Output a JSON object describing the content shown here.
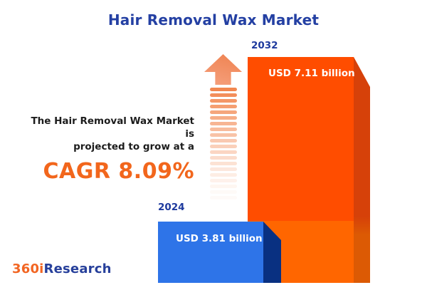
{
  "title": "Hair Removal Wax Market",
  "description": {
    "line1": "The Hair Removal Wax Market is",
    "line2": "projected to grow at a",
    "cagr": "CAGR 8.09%"
  },
  "chart_data": {
    "type": "bar",
    "title": "Hair Removal Wax Market",
    "categories": [
      "2024",
      "2032"
    ],
    "values": [
      3.81,
      7.11
    ],
    "unit": "USD billion",
    "bar_labels": [
      "USD 3.81 billion",
      "USD 7.11 billion"
    ],
    "cagr_percent": 8.09,
    "annotation": "The Hair Removal Wax Market is projected to grow at a CAGR 8.09%",
    "legend": "none",
    "grid": false,
    "series_colors": {
      "2024": "#2E74E8",
      "2032": "#FF4D00"
    }
  },
  "bars": {
    "y2024": {
      "year": "2024",
      "label": "USD 3.81 billion"
    },
    "y2032": {
      "year": "2032",
      "label": "USD 7.11 billion"
    }
  },
  "logo": {
    "part1": "360i",
    "part2": "Research"
  },
  "colors": {
    "background": "#FFFFFF",
    "title_blue": "#2440A3",
    "year_label_blue": "#1E3A9E",
    "text_dark": "#1C1C1C",
    "cagr_orange": "#F2661C",
    "bar2032_front": "#FF4D00",
    "bar2032_side": "#D64109",
    "bar2032_lower_front": "#FF6600",
    "bar2032_lower_side": "#DC5A04",
    "bar2024_front": "#2E74E8",
    "bar2024_side": "#093081",
    "arrow_salmon": "#F28750",
    "logo_orange": "#F26522",
    "logo_blue": "#27409B"
  }
}
